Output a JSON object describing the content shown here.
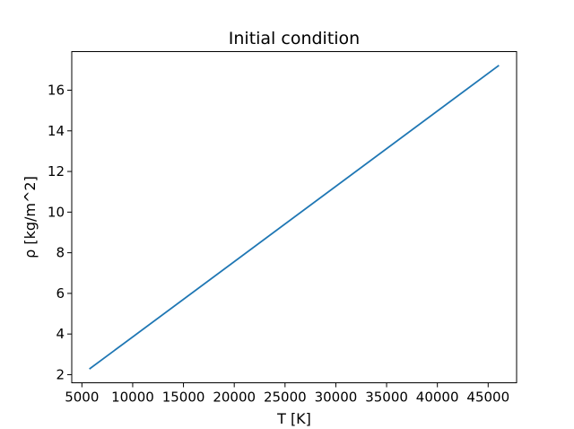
{
  "chart_data": {
    "type": "line",
    "title": "Initial condition",
    "xlabel": "T [K]",
    "ylabel": "ρ [kg/m^2]",
    "xlim": [
      4000,
      47800
    ],
    "ylim": [
      1.6,
      17.9
    ],
    "xticks": [
      5000,
      10000,
      15000,
      20000,
      25000,
      30000,
      35000,
      40000,
      45000
    ],
    "xtick_labels": [
      "5000",
      "10000",
      "15000",
      "20000",
      "25000",
      "30000",
      "35000",
      "40000",
      "45000"
    ],
    "yticks": [
      2,
      4,
      6,
      8,
      10,
      12,
      14,
      16
    ],
    "ytick_labels": [
      "2",
      "4",
      "6",
      "8",
      "10",
      "12",
      "14",
      "16"
    ],
    "grid": false,
    "legend": "none",
    "series": [
      {
        "color": "#1f77b4",
        "x": [
          5800,
          46000
        ],
        "y": [
          2.3,
          17.2
        ]
      }
    ]
  }
}
